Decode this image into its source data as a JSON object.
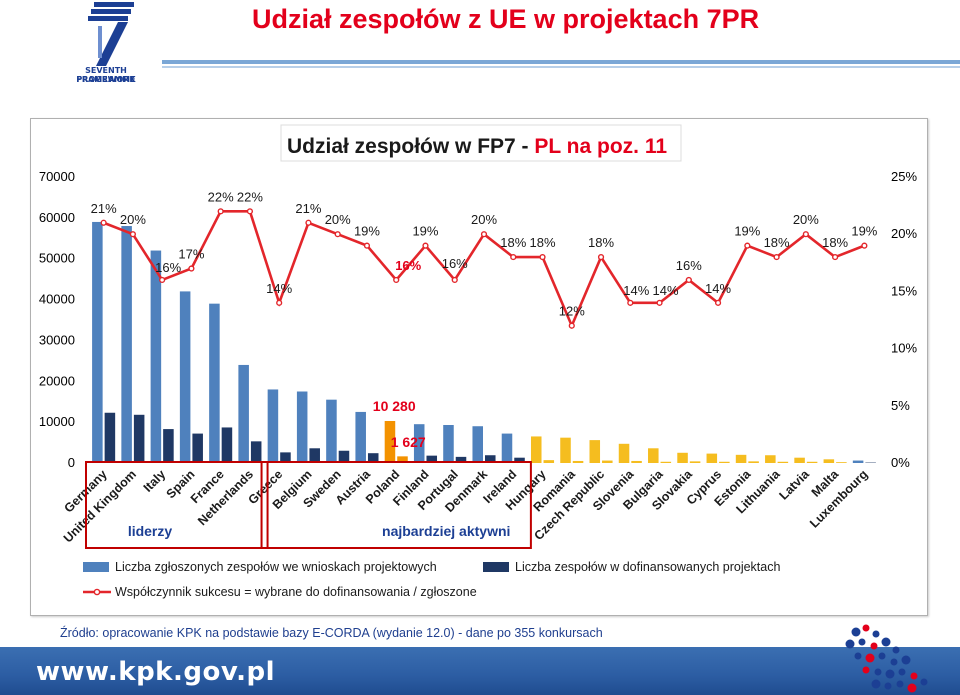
{
  "header": {
    "title": "Udział zespołów z UE  w projektach 7PR",
    "logo_line1": "SEVENTH FRAMEWORK",
    "logo_line2": "PROGRAMME"
  },
  "source_note": "Źródło: opracowanie KPK na podstawie bazy E-CORDA (wydanie 12.0) - dane po 355 konkursach",
  "footer": {
    "url": "www.kpk.gov.pl"
  },
  "colors": {
    "title_red": "#e3001b",
    "bar_submitted": "#4f81bd",
    "bar_funded": "#1f3864",
    "bar_submitted_other": "#f5bd1f",
    "bar_highlight_pl": "#f39200",
    "line_success": "#e3262b",
    "box_red": "#c00000"
  },
  "chart_data": {
    "type": "bar",
    "title": "Udział zespołów w FP7 - ",
    "title_highlight": "PL na poz. 11",
    "categories": [
      "Germany",
      "United Kingdom",
      "Italy",
      "Spain",
      "France",
      "Netherlands",
      "Greece",
      "Belgium",
      "Sweden",
      "Austria",
      "Poland",
      "Finland",
      "Portugal",
      "Denmark",
      "Ireland",
      "Hungary",
      "Romania",
      "Czech Republic",
      "Slovenia",
      "Bulgaria",
      "Slovakia",
      "Cyprus",
      "Estonia",
      "Lithuania",
      "Latvia",
      "Malta",
      "Luxembourg"
    ],
    "series": [
      {
        "name": "Liczba zgłoszonych zespołów we wnioskach projektowych",
        "axis": "left",
        "values": [
          59000,
          58000,
          52000,
          42000,
          39000,
          24000,
          18000,
          17500,
          15500,
          12500,
          10280,
          9500,
          9300,
          9000,
          7200,
          6500,
          6200,
          5600,
          4700,
          3600,
          2500,
          2300,
          2000,
          1900,
          1300,
          900,
          600
        ]
      },
      {
        "name": "Liczba zespołów w dofinansowanych projektach",
        "axis": "left",
        "values": [
          12300,
          11800,
          8300,
          7200,
          8700,
          5300,
          2600,
          3600,
          3000,
          2400,
          1627,
          1800,
          1500,
          1900,
          1300,
          700,
          500,
          600,
          500,
          300,
          400,
          300,
          400,
          300,
          300,
          200,
          100
        ]
      },
      {
        "name": "Współczynnik sukcesu = wybrane do dofinansowania / zgłoszone",
        "axis": "right",
        "type": "line",
        "values": [
          21,
          20,
          16,
          17,
          22,
          22,
          14,
          21,
          20,
          19,
          16,
          19,
          16,
          20,
          18,
          18,
          12,
          18,
          14,
          14,
          16,
          14,
          19,
          18,
          20,
          18,
          19
        ]
      }
    ],
    "highlight_labels": {
      "poland_submitted": "10 280",
      "poland_funded": "1 627",
      "poland_rate": "16%"
    },
    "ylim_left": [
      0,
      70000
    ],
    "yticks_left": [
      "0",
      "10000",
      "20000",
      "30000",
      "40000",
      "50000",
      "60000",
      "70000"
    ],
    "ylim_right": [
      0,
      25
    ],
    "yticks_right": [
      "0%",
      "5%",
      "10%",
      "15%",
      "20%",
      "25%"
    ],
    "groups": [
      {
        "label": "liderzy",
        "from": 0,
        "to": 5
      },
      {
        "label": "najbardziej aktywni",
        "from": 6,
        "to": 14
      }
    ],
    "legend_position": "bottom"
  }
}
